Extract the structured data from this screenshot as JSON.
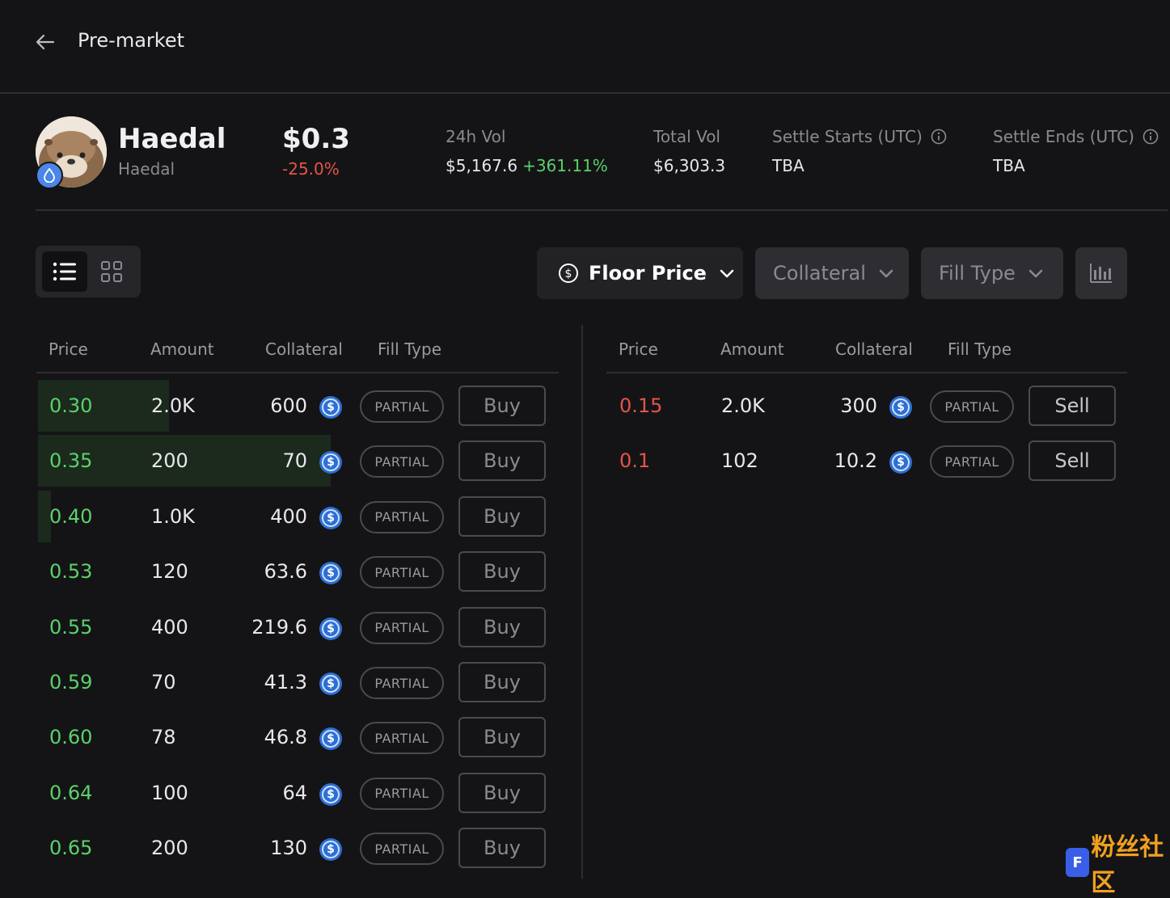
{
  "header": {
    "title": "Pre-market"
  },
  "token": {
    "name": "Haedal",
    "subname": "Haedal",
    "price": "$0.3",
    "change": "-25.0%"
  },
  "stats": {
    "vol24h": {
      "label": "24h Vol",
      "value": "$5,167.6",
      "change": "+361.11%"
    },
    "totalVol": {
      "label": "Total Vol",
      "value": "$6,303.3"
    },
    "settleStarts": {
      "label": "Settle Starts (UTC)",
      "value": "TBA"
    },
    "settleEnds": {
      "label": "Settle Ends (UTC)",
      "value": "TBA"
    }
  },
  "filters": {
    "floor_price": "Floor Price",
    "collateral": "Collateral",
    "fill_type": "Fill Type"
  },
  "columns": {
    "price": "Price",
    "amount": "Amount",
    "collateral": "Collateral",
    "fill_type": "Fill Type"
  },
  "buy_orders": [
    {
      "price": "0.30",
      "amount": "2.0K",
      "collateral": "600",
      "fill": "PARTIAL",
      "action": "Buy",
      "depth": 0.25
    },
    {
      "price": "0.35",
      "amount": "200",
      "collateral": "70",
      "fill": "PARTIAL",
      "action": "Buy",
      "depth": 0.56
    },
    {
      "price": "0.40",
      "amount": "1.0K",
      "collateral": "400",
      "fill": "PARTIAL",
      "action": "Buy",
      "depth": 0.025
    },
    {
      "price": "0.53",
      "amount": "120",
      "collateral": "63.6",
      "fill": "PARTIAL",
      "action": "Buy",
      "depth": 0
    },
    {
      "price": "0.55",
      "amount": "400",
      "collateral": "219.6",
      "fill": "PARTIAL",
      "action": "Buy",
      "depth": 0
    },
    {
      "price": "0.59",
      "amount": "70",
      "collateral": "41.3",
      "fill": "PARTIAL",
      "action": "Buy",
      "depth": 0
    },
    {
      "price": "0.60",
      "amount": "78",
      "collateral": "46.8",
      "fill": "PARTIAL",
      "action": "Buy",
      "depth": 0
    },
    {
      "price": "0.64",
      "amount": "100",
      "collateral": "64",
      "fill": "PARTIAL",
      "action": "Buy",
      "depth": 0
    },
    {
      "price": "0.65",
      "amount": "200",
      "collateral": "130",
      "fill": "PARTIAL",
      "action": "Buy",
      "depth": 0
    }
  ],
  "sell_orders": [
    {
      "price": "0.15",
      "amount": "2.0K",
      "collateral": "300",
      "fill": "PARTIAL",
      "action": "Sell"
    },
    {
      "price": "0.1",
      "amount": "102",
      "collateral": "10.2",
      "fill": "PARTIAL",
      "action": "Sell"
    }
  ],
  "watermark": {
    "logo": "F",
    "text": "粉丝社区"
  },
  "colors": {
    "buy": "#5bd16a",
    "sell": "#e5534b",
    "bg": "#141416"
  },
  "icons": [
    "back-arrow-icon",
    "info-icon",
    "list-view-icon",
    "grid-view-icon",
    "dollar-circle-icon",
    "chevron-down-icon",
    "depth-chart-icon",
    "usdc-icon",
    "water-drop-icon"
  ]
}
